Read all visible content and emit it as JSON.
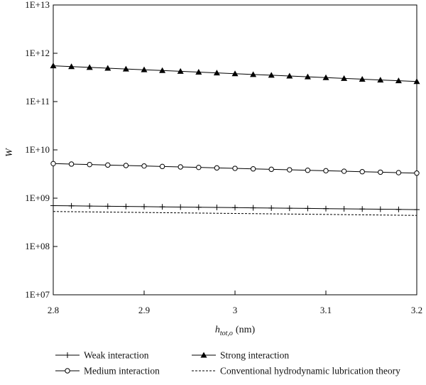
{
  "chart_data": {
    "type": "line",
    "x_axis": {
      "label_main": "h",
      "label_sub": "tot,o",
      "label_unit": "(nm)",
      "range": [
        2.8,
        3.2
      ],
      "ticks": [
        2.8,
        2.9,
        3.0,
        3.1,
        3.2
      ],
      "tick_labels": [
        "2.8",
        "2.9",
        "3",
        "3.1",
        "3.2"
      ]
    },
    "y_axis": {
      "label": "W",
      "scale": "log",
      "range": [
        10000000,
        10000000000000
      ],
      "tick_exponents": [
        7,
        8,
        9,
        10,
        11,
        12,
        13
      ],
      "tick_labels": [
        "1E+07",
        "1E+08",
        "1E+09",
        "1E+10",
        "1E+11",
        "1E+12",
        "1E+13"
      ]
    },
    "grid": false,
    "legend_position": "bottom",
    "series": [
      {
        "name": "Weak interaction",
        "marker": "plus",
        "x_start": 2.8,
        "x_end": 3.2,
        "x_step": 0.02,
        "y_start": 700000000,
        "y_end": 580000000
      },
      {
        "name": "Strong interaction",
        "marker": "filled-triangle",
        "x_start": 2.8,
        "x_end": 3.2,
        "x_step": 0.02,
        "y_start": 550000000000,
        "y_end": 260000000000
      },
      {
        "name": "Medium interaction",
        "marker": "open-circle",
        "x_start": 2.8,
        "x_end": 3.2,
        "x_step": 0.02,
        "y_start": 5200000000,
        "y_end": 3300000000
      },
      {
        "name": "Conventional hydrodynamic lubrication theory",
        "marker": "none",
        "line_style": "dashed",
        "x_start": 2.8,
        "x_end": 3.2,
        "x_step": 0.02,
        "y_start": 530000000,
        "y_end": 440000000
      }
    ]
  }
}
